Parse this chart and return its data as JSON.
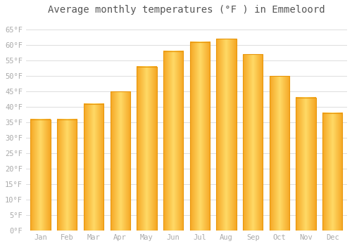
{
  "months": [
    "Jan",
    "Feb",
    "Mar",
    "Apr",
    "May",
    "Jun",
    "Jul",
    "Aug",
    "Sep",
    "Oct",
    "Nov",
    "Dec"
  ],
  "values": [
    36,
    36,
    41,
    45,
    53,
    58,
    61,
    62,
    57,
    50,
    43,
    38
  ],
  "bar_color_left": "#F5A623",
  "bar_color_right": "#FFD966",
  "bar_edge_color": "#E8960A",
  "title": "Average monthly temperatures (°F ) in Emmeloord",
  "title_fontsize": 10,
  "ylim": [
    0,
    68
  ],
  "yticks": [
    0,
    5,
    10,
    15,
    20,
    25,
    30,
    35,
    40,
    45,
    50,
    55,
    60,
    65
  ],
  "ytick_labels": [
    "0°F",
    "5°F",
    "10°F",
    "15°F",
    "20°F",
    "25°F",
    "30°F",
    "35°F",
    "40°F",
    "45°F",
    "50°F",
    "55°F",
    "60°F",
    "65°F"
  ],
  "background_color": "#FFFFFF",
  "grid_color": "#DDDDDD",
  "tick_label_color": "#AAAAAA",
  "title_color": "#555555",
  "bar_width": 0.75
}
